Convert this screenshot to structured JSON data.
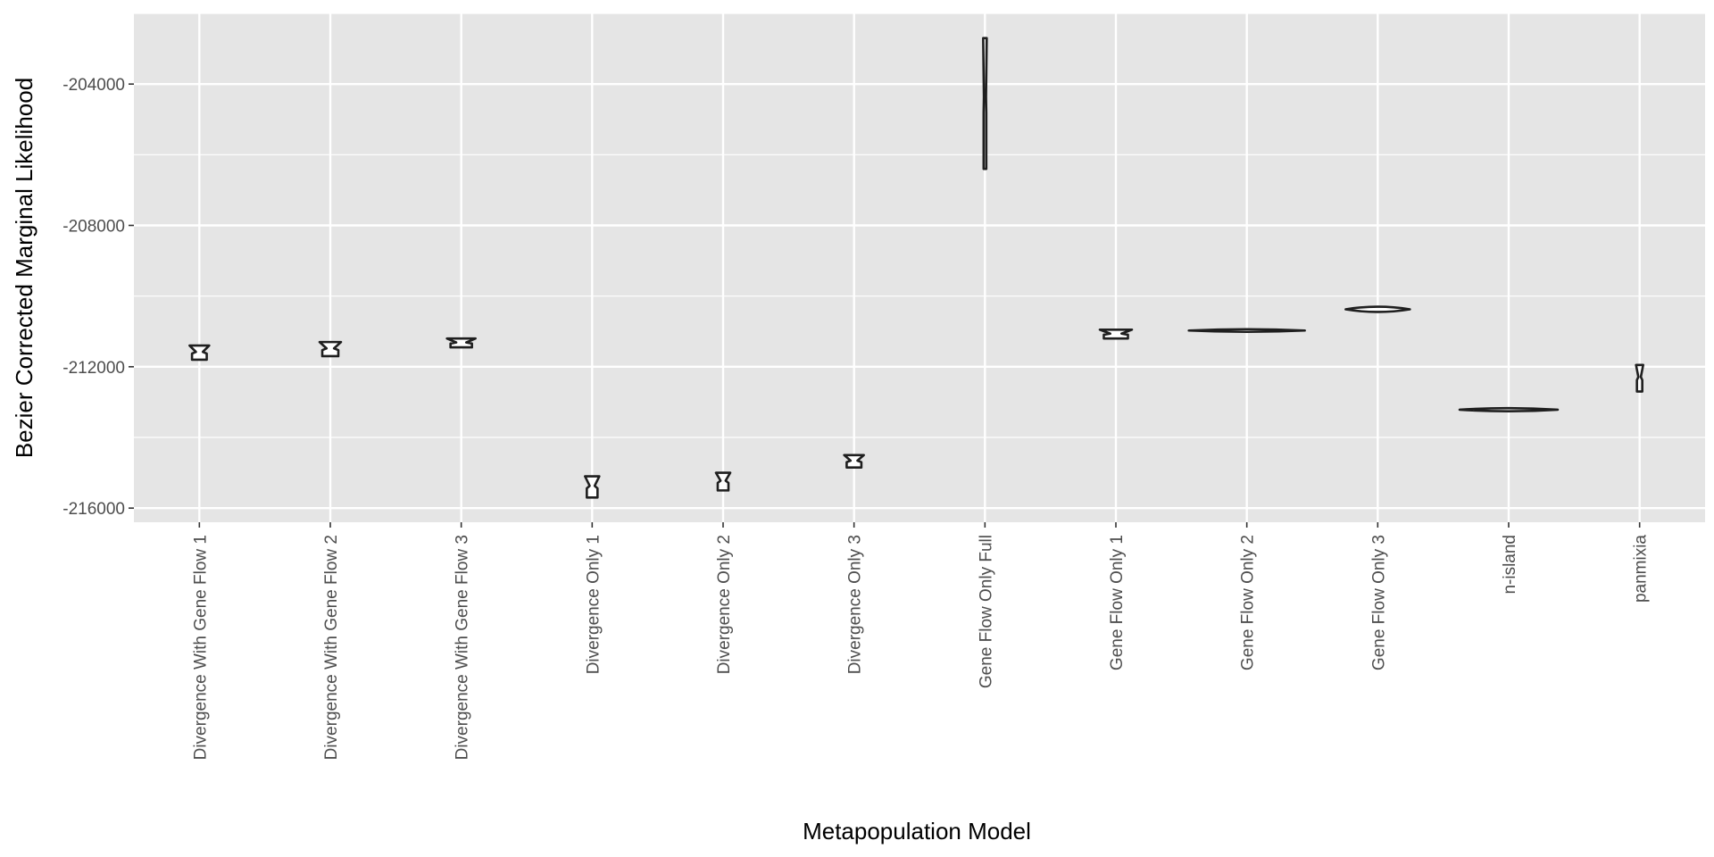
{
  "chart_data": {
    "type": "violin",
    "title": "",
    "xlabel": "Metapopulation Model",
    "ylabel": "Bezier Corrected Marginal Likelihood",
    "ylim": [
      -216400,
      -202000
    ],
    "yticks": [
      -204000,
      -208000,
      -212000,
      -216000
    ],
    "ytick_labels": [
      "-204000",
      "-208000",
      "-212000",
      "-216000"
    ],
    "grid": true,
    "panel_background": "#e5e5e5",
    "grid_color": "#ffffff",
    "outline_color": "#1f1f1f",
    "categories": [
      "Divergence With Gene Flow 1",
      "Divergence With Gene Flow 2",
      "Divergence With Gene Flow 3",
      "Divergence Only 1",
      "Divergence Only 2",
      "Divergence Only 3",
      "Gene Flow Only Full",
      "Gene Flow Only 1",
      "Gene Flow Only 2",
      "Gene Flow Only 3",
      "n-island",
      "panmixia"
    ],
    "series": [
      {
        "category": "Divergence With Gene Flow 1",
        "min": -211800,
        "max": -211400
      },
      {
        "category": "Divergence With Gene Flow 2",
        "min": -211700,
        "max": -211300
      },
      {
        "category": "Divergence With Gene Flow 3",
        "min": -211450,
        "max": -211200
      },
      {
        "category": "Divergence Only 1",
        "min": -215700,
        "max": -215100
      },
      {
        "category": "Divergence Only 2",
        "min": -215500,
        "max": -215000
      },
      {
        "category": "Divergence Only 3",
        "min": -214850,
        "max": -214500
      },
      {
        "category": "Gene Flow Only Full",
        "min": -206400,
        "max": -202700
      },
      {
        "category": "Gene Flow Only 1",
        "min": -211200,
        "max": -210950
      },
      {
        "category": "Gene Flow Only 2",
        "min": -211000,
        "max": -210950
      },
      {
        "category": "Gene Flow Only 3",
        "min": -210450,
        "max": -210300
      },
      {
        "category": "n-island",
        "min": -213260,
        "max": -213170
      },
      {
        "category": "panmixia",
        "min": -212700,
        "max": -211950
      }
    ]
  }
}
